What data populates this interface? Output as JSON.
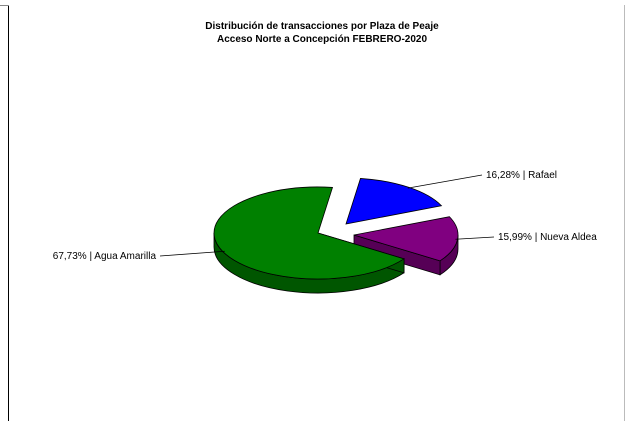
{
  "chart_data": {
    "type": "pie",
    "title": "Distribución de transacciones por Plaza de Peaje",
    "subtitle": "Acceso Norte a Concepción FEBRERO-2020",
    "slices": [
      {
        "label": "Rafael",
        "value": 16.28,
        "display": "16,28% | Rafael",
        "color": "#0000ff",
        "side_color": "#0000b0"
      },
      {
        "label": "Nueva Aldea",
        "value": 15.99,
        "display": "15,99% | Nueva Aldea",
        "color": "#800080",
        "side_color": "#560056"
      },
      {
        "label": "Agua Amarilla",
        "value": 67.73,
        "display": "67,73% | Agua Amarilla",
        "color": "#008000",
        "side_color": "#005600"
      }
    ],
    "style": "3d-exploded",
    "legend": "none"
  }
}
